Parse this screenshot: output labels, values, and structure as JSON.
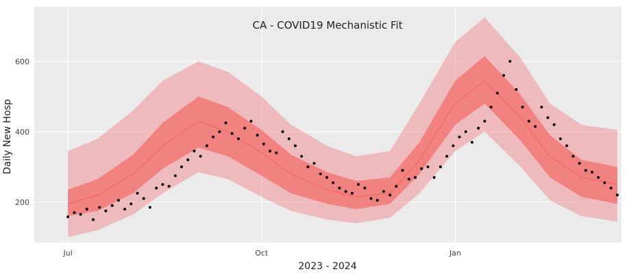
{
  "chart_data": {
    "type": "line",
    "title": "CA - COVID19 Mechanistic Fit",
    "xlabel": "2023 - 2024",
    "ylabel": "Daily New Hosp",
    "x_tick_labels": [
      {
        "date": "2023-07-01",
        "label": "Jul"
      },
      {
        "date": "2023-10-01",
        "label": "Oct"
      },
      {
        "date": "2024-01-01",
        "label": "Jan"
      }
    ],
    "y_ticks": [
      200,
      400,
      600
    ],
    "xlim": [
      "2023-06-15",
      "2024-03-20"
    ],
    "ylim": [
      85,
      755
    ],
    "grid": true,
    "legend": "none",
    "colors": {
      "plot_bg": "#ebebeb",
      "grid": "#ffffff",
      "outer_band": "#f08080",
      "inner_band": "#f26a65",
      "median": "#f26a65",
      "points": "#000000"
    },
    "bands": {
      "x": [
        "2023-07-01",
        "2023-07-15",
        "2023-08-01",
        "2023-08-15",
        "2023-09-01",
        "2023-09-15",
        "2023-10-01",
        "2023-10-15",
        "2023-11-01",
        "2023-11-15",
        "2023-12-01",
        "2023-12-15",
        "2024-01-01",
        "2024-01-15",
        "2024-02-01",
        "2024-02-15",
        "2024-03-01",
        "2024-03-18"
      ],
      "median": [
        195,
        220,
        280,
        360,
        430,
        400,
        340,
        280,
        235,
        215,
        225,
        320,
        480,
        545,
        440,
        330,
        270,
        250
      ],
      "inner_lower": [
        160,
        175,
        225,
        295,
        355,
        330,
        275,
        225,
        195,
        180,
        195,
        280,
        420,
        480,
        375,
        270,
        215,
        195
      ],
      "inner_upper": [
        235,
        265,
        335,
        425,
        500,
        470,
        405,
        335,
        285,
        260,
        270,
        370,
        545,
        615,
        505,
        390,
        320,
        300
      ],
      "outer_lower": [
        100,
        120,
        165,
        225,
        285,
        265,
        215,
        175,
        150,
        140,
        155,
        225,
        345,
        400,
        300,
        205,
        160,
        145
      ],
      "outer_upper": [
        345,
        380,
        460,
        545,
        600,
        570,
        500,
        420,
        360,
        330,
        345,
        480,
        655,
        725,
        610,
        480,
        420,
        405
      ]
    },
    "observed": {
      "x": [
        "2023-07-01",
        "2023-07-04",
        "2023-07-07",
        "2023-07-10",
        "2023-07-13",
        "2023-07-16",
        "2023-07-19",
        "2023-07-22",
        "2023-07-25",
        "2023-07-28",
        "2023-07-31",
        "2023-08-03",
        "2023-08-06",
        "2023-08-09",
        "2023-08-12",
        "2023-08-15",
        "2023-08-18",
        "2023-08-21",
        "2023-08-24",
        "2023-08-27",
        "2023-08-30",
        "2023-09-02",
        "2023-09-05",
        "2023-09-08",
        "2023-09-11",
        "2023-09-14",
        "2023-09-17",
        "2023-09-20",
        "2023-09-23",
        "2023-09-26",
        "2023-09-29",
        "2023-10-02",
        "2023-10-05",
        "2023-10-08",
        "2023-10-11",
        "2023-10-14",
        "2023-10-17",
        "2023-10-20",
        "2023-10-23",
        "2023-10-26",
        "2023-10-29",
        "2023-11-01",
        "2023-11-04",
        "2023-11-07",
        "2023-11-10",
        "2023-11-13",
        "2023-11-16",
        "2023-11-19",
        "2023-11-22",
        "2023-11-25",
        "2023-11-28",
        "2023-12-01",
        "2023-12-04",
        "2023-12-07",
        "2023-12-10",
        "2023-12-13",
        "2023-12-16",
        "2023-12-19",
        "2023-12-22",
        "2023-12-25",
        "2023-12-28",
        "2023-12-31",
        "2024-01-03",
        "2024-01-06",
        "2024-01-09",
        "2024-01-12",
        "2024-01-15",
        "2024-01-18",
        "2024-01-21",
        "2024-01-24",
        "2024-01-27",
        "2024-01-30",
        "2024-02-02",
        "2024-02-05",
        "2024-02-08",
        "2024-02-11",
        "2024-02-14",
        "2024-02-17",
        "2024-02-20",
        "2024-02-23",
        "2024-02-26",
        "2024-02-29",
        "2024-03-03",
        "2024-03-06",
        "2024-03-09",
        "2024-03-12",
        "2024-03-15",
        "2024-03-18"
      ],
      "y": [
        158,
        170,
        165,
        180,
        150,
        185,
        175,
        190,
        205,
        180,
        195,
        225,
        210,
        185,
        240,
        250,
        245,
        275,
        300,
        320,
        345,
        330,
        360,
        385,
        400,
        425,
        395,
        380,
        410,
        430,
        390,
        365,
        345,
        340,
        400,
        380,
        360,
        330,
        300,
        310,
        280,
        270,
        255,
        240,
        230,
        225,
        250,
        240,
        210,
        205,
        230,
        220,
        245,
        290,
        265,
        270,
        295,
        300,
        270,
        300,
        330,
        360,
        385,
        400,
        370,
        410,
        430,
        470,
        510,
        560,
        600,
        520,
        470,
        430,
        415,
        470,
        440,
        420,
        380,
        360,
        330,
        310,
        290,
        285,
        270,
        255,
        240,
        220
      ]
    }
  }
}
